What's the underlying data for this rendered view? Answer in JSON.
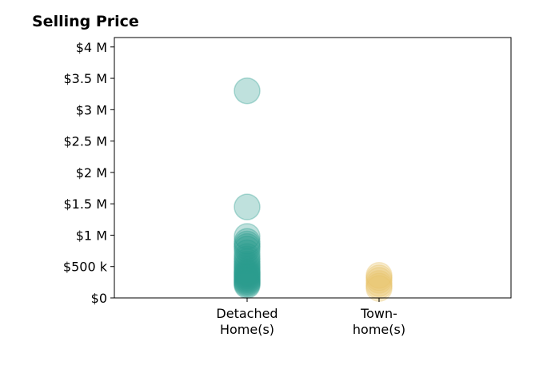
{
  "chart_data": {
    "type": "scatter",
    "title": "Selling Price",
    "xlabel": "",
    "ylabel": "",
    "categories": [
      "Detached\nHome(s)",
      "Town-\nhome(s)"
    ],
    "ylim": [
      0,
      4150000
    ],
    "yticks": [
      0,
      500000,
      1000000,
      1500000,
      2000000,
      2500000,
      3000000,
      3500000,
      4000000
    ],
    "ytick_labels": [
      "$0",
      "$500 k",
      "$1 M",
      "$1.5 M",
      "$2 M",
      "$2.5 M",
      "$3 M",
      "$3.5 M",
      "$4 M"
    ],
    "grid": false,
    "series": [
      {
        "category": "Detached\nHome(s)",
        "color": "#2a9d8f",
        "values": [
          3300000,
          1450000,
          980000,
          900000,
          860000,
          820000,
          780000,
          720000,
          660000,
          620000,
          580000,
          540000,
          510000,
          480000,
          450000,
          420000,
          400000,
          380000,
          360000,
          340000,
          320000,
          300000,
          280000,
          260000,
          240000,
          220000,
          200000
        ]
      },
      {
        "category": "Town-\nhome(s)",
        "color": "#e9c46a",
        "values": [
          360000,
          320000,
          280000,
          230000,
          190000,
          150000
        ]
      }
    ]
  }
}
